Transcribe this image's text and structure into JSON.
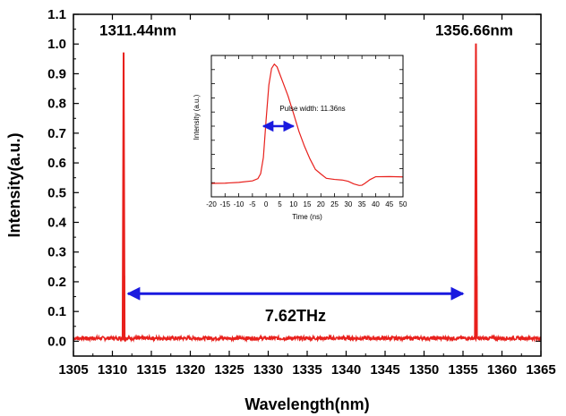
{
  "colors": {
    "trace": "#e8201c",
    "arrow": "#1a1adf",
    "axis": "#000000"
  },
  "chart_data": [
    {
      "type": "line",
      "xlabel": "Wavelength(nm)",
      "ylabel": "Intensity(a.u.)",
      "xlim": [
        1305,
        1365
      ],
      "ylim": [
        -0.05,
        1.1
      ],
      "xticks": [
        1305,
        1310,
        1315,
        1320,
        1325,
        1330,
        1335,
        1340,
        1345,
        1350,
        1355,
        1360,
        1365
      ],
      "yticks": [
        "0.0",
        "0.1",
        "0.2",
        "0.3",
        "0.4",
        "0.5",
        "0.6",
        "0.7",
        "0.8",
        "0.9",
        "1.0",
        "1.1"
      ],
      "noise_floor": 0.01,
      "peaks": [
        {
          "x": 1311.44,
          "y": 0.97,
          "label": "1311.44nm"
        },
        {
          "x": 1356.66,
          "y": 1.0,
          "label": "1356.66nm"
        }
      ],
      "separation_arrow": {
        "x_from": 1312,
        "x_to": 1355,
        "y": 0.16,
        "label": "7.62THz"
      }
    },
    {
      "type": "line",
      "xlabel": "Time (ns)",
      "ylabel": "Intensity (a.u.)",
      "xlim": [
        -20,
        50
      ],
      "ylim": [
        0,
        1
      ],
      "xticks": [
        "-20",
        "-15",
        "-10",
        "-5",
        "0",
        "5",
        "10",
        "15",
        "20",
        "25",
        "30",
        "35",
        "40",
        "45",
        "50"
      ],
      "x": [
        -20,
        -15,
        -10,
        -5,
        -3,
        -2,
        -1,
        0,
        1,
        2,
        3,
        4,
        5,
        6,
        8,
        10,
        12,
        14,
        16,
        18,
        20,
        22,
        25,
        28,
        30,
        32,
        34,
        35,
        36,
        38,
        40,
        45,
        50
      ],
      "y": [
        0.05,
        0.05,
        0.06,
        0.07,
        0.09,
        0.13,
        0.25,
        0.55,
        0.82,
        0.95,
        0.99,
        0.97,
        0.91,
        0.85,
        0.74,
        0.6,
        0.46,
        0.34,
        0.24,
        0.16,
        0.12,
        0.09,
        0.08,
        0.08,
        0.07,
        0.05,
        0.03,
        0.03,
        0.05,
        0.08,
        0.1,
        0.1,
        0.1
      ],
      "annotation": "Pulse width: 11.36ns",
      "fwhm_arrow": {
        "x_from": -1,
        "x_to": 10
      }
    }
  ]
}
